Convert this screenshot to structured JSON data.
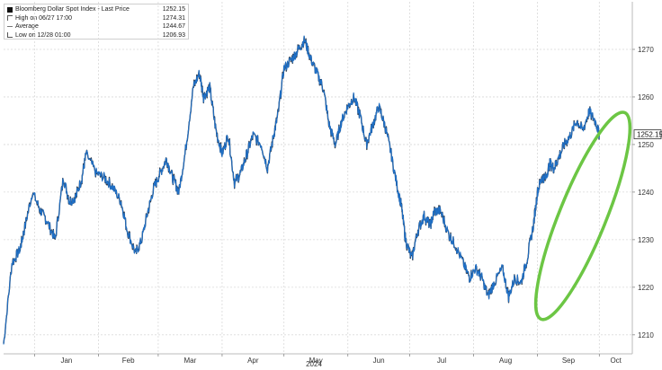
{
  "chart_data": {
    "type": "line",
    "title": "",
    "xlabel": "2024",
    "ylabel": "",
    "ylim": [
      1206,
      1280
    ],
    "y_ticks": [
      1210,
      1220,
      1230,
      1240,
      1250,
      1260,
      1270
    ],
    "y_tick_labels": [
      "1210",
      "1220",
      "1230",
      "1240",
      "1250",
      "1260",
      "1270"
    ],
    "x_ticks": [
      {
        "label": "Jan",
        "x": 15
      },
      {
        "label": "Feb",
        "x": 46
      },
      {
        "label": "Mar",
        "x": 75
      },
      {
        "label": "Apr",
        "x": 106
      },
      {
        "label": "May",
        "x": 136
      },
      {
        "label": "Jun",
        "x": 167
      },
      {
        "label": "Jul",
        "x": 197
      },
      {
        "label": "Aug",
        "x": 228
      },
      {
        "label": "Sep",
        "x": 259
      },
      {
        "label": "Oct",
        "x": 289
      }
    ],
    "xlim": [
      0,
      305
    ],
    "grid": true,
    "legend_position": "top-left",
    "legend": [
      {
        "symbol": "bar",
        "label": "Bloomberg Dollar Spot Index - Last Price",
        "value": "1252.15"
      },
      {
        "symbol": "high",
        "label": "High on 06/27 17:00",
        "value": "1274.31"
      },
      {
        "symbol": "average",
        "label": "Average",
        "value": "1244.67"
      },
      {
        "symbol": "low",
        "label": "Low on 12/28 01:00",
        "value": "1206.93"
      }
    ],
    "last_price_label": "1252.15",
    "last_price": 1252.15,
    "series": [
      {
        "x": [
          0,
          4,
          8,
          10,
          14,
          18,
          21,
          25,
          29,
          32,
          35,
          38,
          40,
          45,
          49,
          53,
          57,
          60,
          64,
          67,
          70,
          73,
          76,
          79,
          82,
          85,
          88,
          92,
          95,
          97,
          100,
          103,
          106,
          109,
          112,
          115,
          118,
          121,
          125,
          128,
          131,
          133,
          136,
          140,
          143,
          146,
          149,
          152,
          155,
          158,
          161,
          164,
          167,
          170,
          173,
          176,
          179,
          182,
          185,
          188,
          191,
          193,
          195,
          198,
          201,
          204,
          207,
          209,
          212,
          216,
          219,
          223,
          226,
          229,
          232,
          235,
          238,
          242,
          245,
          248,
          251,
          254,
          257,
          259,
          261,
          263,
          265,
          267,
          269,
          272,
          275,
          278,
          281,
          284,
          287,
          289
        ],
        "y": [
          1208,
          1225,
          1228,
          1232,
          1240,
          1236,
          1234,
          1230,
          1243,
          1238,
          1239,
          1243,
          1248,
          1244,
          1243,
          1241,
          1238,
          1232,
          1227,
          1230,
          1236,
          1241,
          1244,
          1247,
          1243,
          1240,
          1248,
          1262,
          1265,
          1260,
          1262,
          1253,
          1248,
          1252,
          1242,
          1244,
          1248,
          1252,
          1250,
          1245,
          1252,
          1256,
          1266,
          1268,
          1270,
          1272,
          1268,
          1265,
          1262,
          1254,
          1250,
          1255,
          1258,
          1260,
          1256,
          1250,
          1254,
          1258,
          1254,
          1248,
          1241,
          1237,
          1230,
          1226,
          1232,
          1235,
          1233,
          1236,
          1236,
          1231,
          1229,
          1225,
          1222,
          1224,
          1222,
          1218,
          1221,
          1224,
          1218,
          1222,
          1221,
          1226,
          1233,
          1240,
          1243,
          1243,
          1246,
          1245,
          1247,
          1250,
          1252,
          1255,
          1253,
          1257,
          1255,
          1252.15
        ]
      }
    ],
    "annotation": {
      "shape": "ellipse",
      "color": "#6cc644"
    }
  },
  "colors": {
    "line": "#1f6fc5",
    "line_dark": "#0d1b2e",
    "grid": "#d9d9d9",
    "axis_text": "#333333",
    "highlight": "#6cc644",
    "price_tag_bg": "#ffffff",
    "price_tag_border": "#333333"
  }
}
